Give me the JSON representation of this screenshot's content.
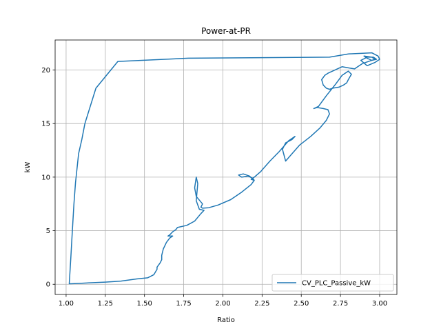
{
  "chart_data": {
    "type": "line",
    "title": "Power-at-PR",
    "xlabel": "Ratio",
    "ylabel": "kW",
    "xlim": [
      0.93,
      3.11
    ],
    "ylim": [
      -0.95,
      22.8
    ],
    "xticks": [
      1.0,
      1.25,
      1.5,
      1.75,
      2.0,
      2.25,
      2.5,
      2.75,
      3.0
    ],
    "xtick_labels": [
      "1.00",
      "1.25",
      "1.50",
      "1.75",
      "2.00",
      "2.25",
      "2.50",
      "2.75",
      "3.00"
    ],
    "yticks": [
      0,
      5,
      10,
      15,
      20
    ],
    "ytick_labels": [
      "0",
      "5",
      "10",
      "15",
      "20"
    ],
    "grid": true,
    "legend_position": "lower-right",
    "series": [
      {
        "name": "CV_PLC_Passive_kW",
        "color": "#1f77b4",
        "x": [
          1.02,
          1.03,
          1.04,
          1.05,
          1.06,
          1.08,
          1.1,
          1.12,
          1.19,
          1.33,
          1.78,
          2.68,
          2.8,
          2.95,
          2.99,
          3.0,
          2.97,
          2.92,
          2.88,
          2.92,
          2.96,
          2.98,
          2.95,
          2.92,
          2.9,
          2.95,
          2.97,
          2.93,
          2.89,
          2.86,
          2.84,
          2.8,
          2.76,
          2.73,
          2.7,
          2.67,
          2.65,
          2.63,
          2.64,
          2.66,
          2.68,
          2.7,
          2.74,
          2.77,
          2.79,
          2.8,
          2.82,
          2.8,
          2.76,
          2.72,
          2.66,
          2.61,
          2.58,
          2.6,
          2.64,
          2.67,
          2.68,
          2.66,
          2.62,
          2.56,
          2.49,
          2.43,
          2.4,
          2.38,
          2.4,
          2.44,
          2.46,
          2.45,
          2.42,
          2.36,
          2.3,
          2.24,
          2.2,
          2.18,
          2.2,
          2.19,
          2.16,
          2.12,
          2.1,
          2.13,
          2.17,
          2.2,
          2.18,
          2.12,
          2.05,
          1.97,
          1.91,
          1.87,
          1.86,
          1.87,
          1.83,
          1.82,
          1.83,
          1.84,
          1.83,
          1.85,
          1.88,
          1.86,
          1.82,
          1.77,
          1.71,
          1.7,
          1.68,
          1.66,
          1.65,
          1.68,
          1.66,
          1.64,
          1.62,
          1.61,
          1.61,
          1.6,
          1.58,
          1.58,
          1.56,
          1.52,
          1.45,
          1.35,
          1.25,
          1.1,
          1.03,
          1.02
        ],
        "y": [
          0.05,
          2.5,
          5.0,
          7.5,
          9.5,
          12.2,
          13.5,
          15.0,
          18.3,
          20.8,
          21.1,
          21.2,
          21.5,
          21.6,
          21.3,
          21.0,
          20.7,
          20.4,
          20.9,
          21.2,
          21.2,
          21.0,
          20.9,
          21.1,
          21.3,
          21.2,
          21.0,
          20.8,
          20.6,
          20.3,
          20.1,
          20.2,
          20.3,
          20.1,
          19.9,
          19.7,
          19.5,
          19.1,
          18.6,
          18.3,
          18.2,
          18.3,
          18.4,
          18.6,
          18.8,
          19.1,
          19.6,
          19.9,
          19.5,
          18.7,
          17.6,
          16.6,
          16.4,
          16.5,
          16.4,
          16.3,
          15.9,
          15.3,
          14.6,
          13.8,
          13.0,
          12.0,
          11.5,
          12.6,
          13.2,
          13.5,
          13.8,
          13.7,
          13.4,
          12.4,
          11.5,
          10.5,
          10.0,
          9.8,
          9.7,
          9.9,
          10.1,
          10.0,
          10.2,
          10.3,
          10.1,
          9.7,
          9.3,
          8.6,
          7.9,
          7.4,
          7.15,
          7.1,
          7.2,
          7.5,
          8.2,
          9.0,
          10.0,
          9.4,
          7.8,
          7.0,
          6.9,
          6.6,
          5.9,
          5.5,
          5.3,
          5.1,
          4.9,
          4.6,
          4.5,
          4.5,
          4.3,
          3.9,
          3.3,
          2.7,
          2.3,
          2.0,
          1.6,
          1.4,
          0.9,
          0.6,
          0.5,
          0.3,
          0.2,
          0.1,
          0.05,
          0.05
        ]
      }
    ]
  }
}
